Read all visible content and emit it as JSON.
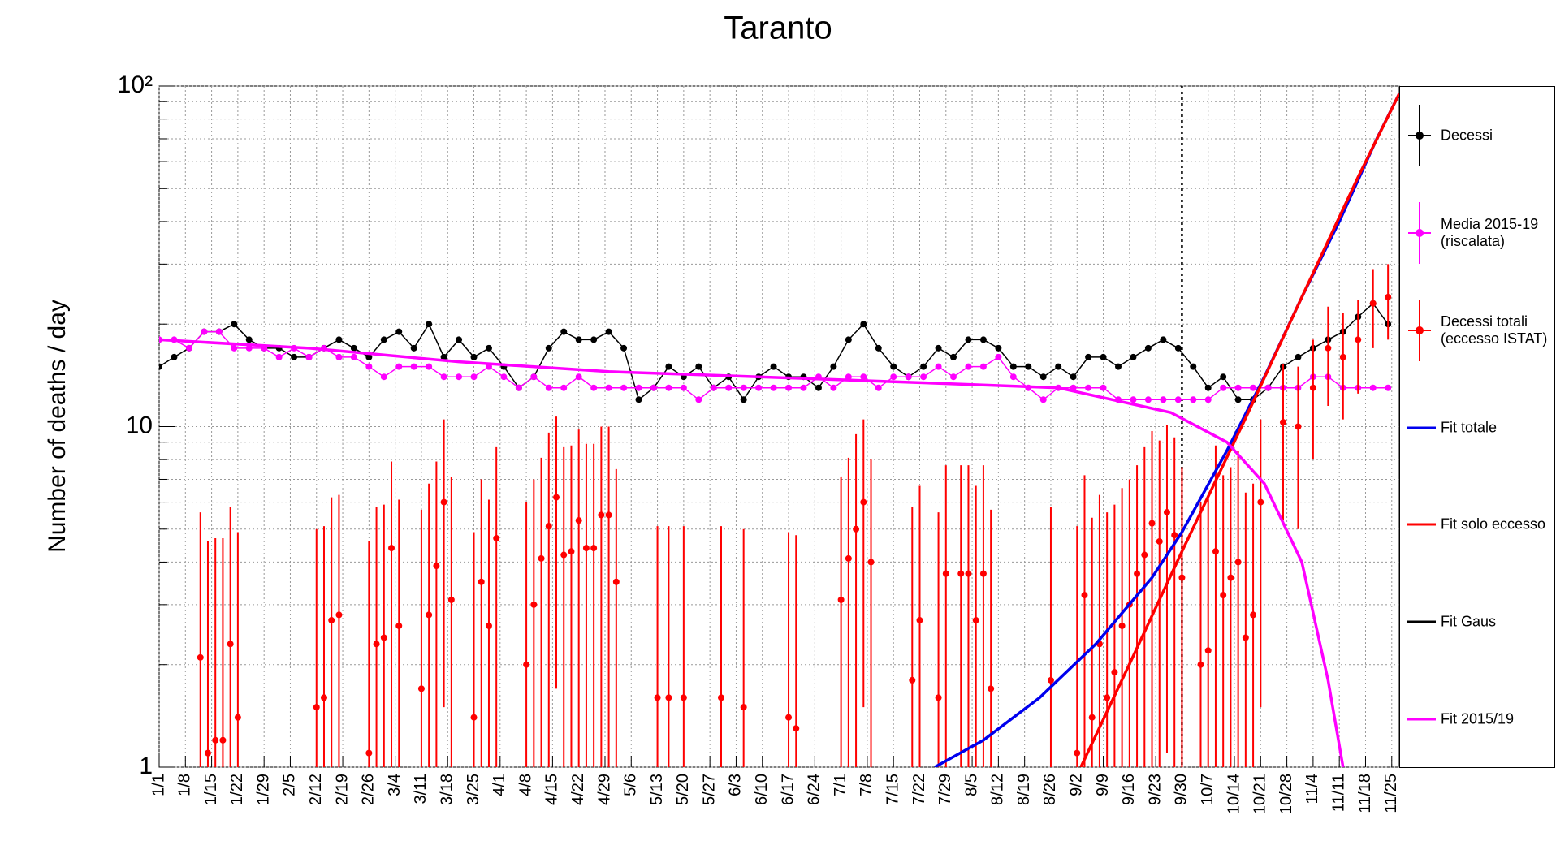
{
  "chart_data": {
    "type": "line",
    "title": "Taranto",
    "y_label": "Number of deaths / day",
    "log_y": true,
    "grid": true,
    "legend": "right",
    "xlim": [
      0,
      331
    ],
    "ylim": [
      1,
      100
    ],
    "yticks": [
      1,
      10,
      {
        "value": 100,
        "label": "10²"
      }
    ],
    "yminorticks": [
      2,
      3,
      4,
      5,
      6,
      7,
      8,
      9,
      20,
      30,
      40,
      50,
      60,
      70,
      80,
      90
    ],
    "xticks": [
      {
        "value": 0,
        "label": "1/1"
      },
      {
        "value": 7,
        "label": "1/8"
      },
      {
        "value": 14,
        "label": "1/15"
      },
      {
        "value": 21,
        "label": "1/22"
      },
      {
        "value": 28,
        "label": "1/29"
      },
      {
        "value": 35,
        "label": "2/5"
      },
      {
        "value": 42,
        "label": "2/12"
      },
      {
        "value": 49,
        "label": "2/19"
      },
      {
        "value": 56,
        "label": "2/26"
      },
      {
        "value": 63,
        "label": "3/4"
      },
      {
        "value": 70,
        "label": "3/11"
      },
      {
        "value": 77,
        "label": "3/18"
      },
      {
        "value": 84,
        "label": "3/25"
      },
      {
        "value": 91,
        "label": "4/1"
      },
      {
        "value": 98,
        "label": "4/8"
      },
      {
        "value": 105,
        "label": "4/15"
      },
      {
        "value": 112,
        "label": "4/22"
      },
      {
        "value": 119,
        "label": "4/29"
      },
      {
        "value": 126,
        "label": "5/6"
      },
      {
        "value": 133,
        "label": "5/13"
      },
      {
        "value": 140,
        "label": "5/20"
      },
      {
        "value": 147,
        "label": "5/27"
      },
      {
        "value": 154,
        "label": "6/3"
      },
      {
        "value": 161,
        "label": "6/10"
      },
      {
        "value": 168,
        "label": "6/17"
      },
      {
        "value": 175,
        "label": "6/24"
      },
      {
        "value": 182,
        "label": "7/1"
      },
      {
        "value": 189,
        "label": "7/8"
      },
      {
        "value": 196,
        "label": "7/15"
      },
      {
        "value": 203,
        "label": "7/22"
      },
      {
        "value": 210,
        "label": "7/29"
      },
      {
        "value": 217,
        "label": "8/5"
      },
      {
        "value": 224,
        "label": "8/12"
      },
      {
        "value": 231,
        "label": "8/19"
      },
      {
        "value": 238,
        "label": "8/26"
      },
      {
        "value": 245,
        "label": "9/2"
      },
      {
        "value": 252,
        "label": "9/9"
      },
      {
        "value": 259,
        "label": "9/16"
      },
      {
        "value": 266,
        "label": "9/23"
      },
      {
        "value": 273,
        "label": "9/30"
      },
      {
        "value": 280,
        "label": "10/7"
      },
      {
        "value": 287,
        "label": "10/14"
      },
      {
        "value": 294,
        "label": "10/21"
      },
      {
        "value": 301,
        "label": "10/28"
      },
      {
        "value": 308,
        "label": "11/4"
      },
      {
        "value": 315,
        "label": "11/11"
      },
      {
        "value": 322,
        "label": "11/18"
      },
      {
        "value": 329,
        "label": "11/25"
      }
    ],
    "vline_x": 273,
    "series": [
      {
        "name": "Decessi",
        "color": "#000000",
        "style": "points",
        "x": [
          0,
          4,
          8,
          12,
          16,
          20,
          24,
          28,
          32,
          36,
          40,
          44,
          48,
          52,
          56,
          60,
          64,
          68,
          72,
          76,
          80,
          84,
          88,
          92,
          96,
          100,
          104,
          108,
          112,
          116,
          120,
          124,
          128,
          132,
          136,
          140,
          144,
          148,
          152,
          156,
          160,
          164,
          168,
          172,
          176,
          180,
          184,
          188,
          192,
          196,
          200,
          204,
          208,
          212,
          216,
          220,
          224,
          228,
          232,
          236,
          240,
          244,
          248,
          252,
          256,
          260,
          264,
          268,
          272,
          276,
          280,
          284,
          288,
          292,
          296,
          300,
          304,
          308,
          312,
          316,
          320,
          324,
          328
        ],
        "values": [
          15,
          16,
          17,
          19,
          19,
          20,
          18,
          17,
          17,
          16,
          16,
          17,
          18,
          17,
          16,
          18,
          19,
          17,
          20,
          16,
          18,
          16,
          17,
          15,
          13,
          14,
          17,
          19,
          18,
          18,
          19,
          17,
          12,
          13,
          15,
          14,
          15,
          13,
          14,
          12,
          14,
          15,
          14,
          14,
          13,
          15,
          18,
          20,
          17,
          15,
          14,
          15,
          17,
          16,
          18,
          18,
          17,
          15,
          15,
          14,
          15,
          14,
          16,
          16,
          15,
          16,
          17,
          18,
          17,
          15,
          13,
          14,
          12,
          12,
          13,
          15,
          16,
          17,
          18,
          19,
          21,
          23,
          20
        ]
      },
      {
        "name": "Media 2015-19\n(riscalata)",
        "color": "#ff00ff",
        "style": "points",
        "x": [
          0,
          4,
          8,
          12,
          16,
          20,
          24,
          28,
          32,
          36,
          40,
          44,
          48,
          52,
          56,
          60,
          64,
          68,
          72,
          76,
          80,
          84,
          88,
          92,
          96,
          100,
          104,
          108,
          112,
          116,
          120,
          124,
          128,
          132,
          136,
          140,
          144,
          148,
          152,
          156,
          160,
          164,
          168,
          172,
          176,
          180,
          184,
          188,
          192,
          196,
          200,
          204,
          208,
          212,
          216,
          220,
          224,
          228,
          232,
          236,
          240,
          244,
          248,
          252,
          256,
          260,
          264,
          268,
          272,
          276,
          280,
          284,
          288,
          292,
          296,
          300,
          304,
          308,
          312,
          316,
          320,
          324,
          328
        ],
        "values": [
          18,
          18,
          17,
          19,
          19,
          17,
          17,
          17,
          16,
          17,
          16,
          17,
          16,
          16,
          15,
          14,
          15,
          15,
          15,
          14,
          14,
          14,
          15,
          14,
          13,
          14,
          13,
          13,
          14,
          13,
          13,
          13,
          13,
          13,
          13,
          13,
          12,
          13,
          13,
          13,
          13,
          13,
          13,
          13,
          14,
          13,
          14,
          14,
          13,
          14,
          14,
          14,
          15,
          14,
          15,
          15,
          16,
          14,
          13,
          12,
          13,
          13,
          13,
          13,
          12,
          12,
          12,
          12,
          12,
          12,
          12,
          13,
          13,
          13,
          13,
          13,
          13,
          14,
          14,
          13,
          13,
          13,
          13
        ]
      },
      {
        "name": "Decessi totali\n(eccesso ISTAT)",
        "color": "#ff0000",
        "style": "points",
        "x": [
          11,
          13,
          15,
          17,
          19,
          21,
          42,
          44,
          46,
          48,
          56,
          58,
          60,
          62,
          64,
          70,
          72,
          74,
          76,
          78,
          84,
          86,
          88,
          90,
          98,
          100,
          102,
          104,
          106,
          108,
          110,
          112,
          114,
          116,
          118,
          120,
          122,
          133,
          136,
          140,
          150,
          156,
          168,
          170,
          182,
          184,
          186,
          188,
          190,
          201,
          203,
          208,
          210,
          214,
          216,
          218,
          220,
          222,
          238,
          245,
          247,
          249,
          251,
          253,
          255,
          257,
          259,
          261,
          263,
          265,
          267,
          269,
          271,
          273,
          278,
          280,
          282,
          284,
          286,
          288,
          290,
          292,
          294,
          300,
          304,
          308,
          312,
          316,
          320,
          324,
          328
        ],
        "values": [
          2.1,
          1.1,
          1.2,
          1.2,
          2.3,
          1.4,
          1.5,
          1.6,
          2.7,
          2.8,
          1.1,
          2.3,
          2.4,
          4.4,
          2.6,
          1.7,
          2.8,
          3.9,
          6.0,
          3.1,
          1.4,
          3.5,
          2.6,
          4.7,
          2.0,
          3.0,
          4.1,
          5.1,
          6.2,
          4.2,
          4.3,
          5.3,
          4.4,
          4.4,
          5.5,
          5.5,
          3.5,
          1.6,
          1.6,
          1.6,
          1.6,
          1.5,
          1.4,
          1.3,
          3.1,
          4.1,
          5.0,
          6.0,
          4.0,
          1.8,
          2.7,
          1.6,
          3.7,
          3.7,
          3.7,
          2.7,
          3.7,
          1.7,
          1.8,
          1.1,
          3.2,
          1.4,
          2.3,
          1.6,
          1.9,
          2.6,
          3.0,
          3.7,
          4.2,
          5.2,
          4.6,
          5.6,
          4.8,
          3.6,
          2.0,
          2.2,
          4.3,
          3.2,
          3.6,
          4.0,
          2.4,
          2.8,
          6.0,
          10.3,
          10.0,
          13.0,
          17.0,
          16.0,
          18.0,
          23.0,
          24.0
        ],
        "errors": [
          3.5,
          3.5,
          3.5,
          3.5,
          3.5,
          3.5,
          3.5,
          3.5,
          3.5,
          3.5,
          3.5,
          3.5,
          3.5,
          3.5,
          3.5,
          4.0,
          4.0,
          4.0,
          4.5,
          4.0,
          3.5,
          3.5,
          3.5,
          4.0,
          4.0,
          4.0,
          4.0,
          4.5,
          4.5,
          4.5,
          4.5,
          4.5,
          4.5,
          4.5,
          4.5,
          4.5,
          4.0,
          3.5,
          3.5,
          3.5,
          3.5,
          3.5,
          3.5,
          3.5,
          4.0,
          4.0,
          4.5,
          4.5,
          4.0,
          4.0,
          4.0,
          4.0,
          4.0,
          4.0,
          4.0,
          4.0,
          4.0,
          4.0,
          4.0,
          4.0,
          4.0,
          4.0,
          4.0,
          4.0,
          4.0,
          4.0,
          4.0,
          4.0,
          4.5,
          4.5,
          4.5,
          4.5,
          4.5,
          4.0,
          4.0,
          4.0,
          4.5,
          4.0,
          4.0,
          4.5,
          4.0,
          4.0,
          4.5,
          5.0,
          5.0,
          5.0,
          5.5,
          5.5,
          5.5,
          6.0,
          6.0
        ]
      },
      {
        "name": "Fit totale",
        "color": "#0000ee",
        "style": "line",
        "x": [
          207,
          220,
          235,
          250,
          265,
          273,
          285,
          295,
          305,
          315,
          325,
          331
        ],
        "values": [
          1,
          1.2,
          1.6,
          2.3,
          3.6,
          4.9,
          8.5,
          14,
          24,
          40,
          70,
          95
        ]
      },
      {
        "name": "Fit solo eccesso",
        "color": "#ff0000",
        "style": "line",
        "x": [
          246,
          260,
          273,
          290,
          305,
          320,
          331
        ],
        "values": [
          1,
          2.12,
          4.3,
          10.6,
          24,
          54,
          95
        ]
      },
      {
        "name": "Fit Gaus",
        "color": "#000000",
        "style": "line",
        "x": [],
        "values": []
      },
      {
        "name": "Fit 2015/19",
        "color": "#ff00ff",
        "style": "line",
        "x": [
          0,
          40,
          80,
          120,
          160,
          200,
          240,
          270,
          285,
          295,
          305,
          312,
          316
        ],
        "values": [
          18,
          17,
          15.5,
          14.5,
          14,
          13.5,
          13,
          11,
          9,
          6.8,
          4,
          1.8,
          1
        ]
      }
    ]
  }
}
